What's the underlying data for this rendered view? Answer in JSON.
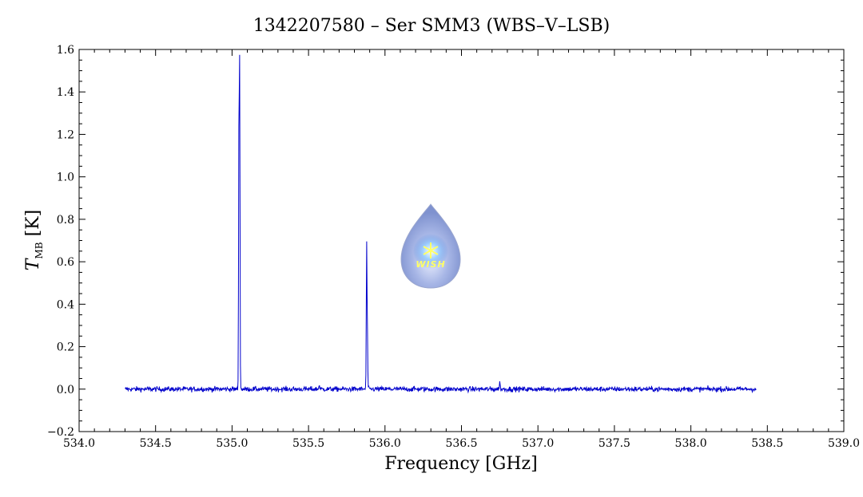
{
  "chart_data": {
    "type": "line",
    "title": "1342207580 – Ser SMM3 (WBS–V–LSB)",
    "xlabel": "Frequency [GHz]",
    "ylabel_main": "T",
    "ylabel_sub": "MB",
    "ylabel_unit": " [K]",
    "xlim": [
      534.0,
      539.0
    ],
    "ylim": [
      -0.2,
      1.6
    ],
    "x_ticks": [
      534.0,
      534.5,
      535.0,
      535.5,
      536.0,
      536.5,
      537.0,
      537.5,
      538.0,
      538.5,
      539.0
    ],
    "x_tick_labels": [
      "534.0",
      "534.5",
      "535.0",
      "535.5",
      "536.0",
      "536.5",
      "537.0",
      "537.5",
      "538.0",
      "538.5",
      "539.0"
    ],
    "y_ticks": [
      -0.2,
      0.0,
      0.2,
      0.4,
      0.6,
      0.8,
      1.0,
      1.2,
      1.4,
      1.6
    ],
    "y_tick_labels": [
      "−0.2",
      "0.0",
      "0.2",
      "0.4",
      "0.6",
      "0.8",
      "1.0",
      "1.2",
      "1.4",
      "1.6"
    ],
    "grid": false,
    "series": [
      {
        "color": "#0000cc",
        "x_range": [
          534.3,
          538.43
        ],
        "baseline": 0.0,
        "noise_rms": 0.006,
        "features": [
          {
            "x": 535.05,
            "peak": 1.48
          },
          {
            "x": 535.045,
            "peak": 1.2
          },
          {
            "x": 535.88,
            "peak": 0.67
          },
          {
            "x": 535.885,
            "peak": 0.27
          },
          {
            "x": 536.75,
            "peak": 0.04
          },
          {
            "x": 535.57,
            "peak": 0.025
          }
        ]
      }
    ]
  },
  "logo": {
    "text": "WISH"
  }
}
